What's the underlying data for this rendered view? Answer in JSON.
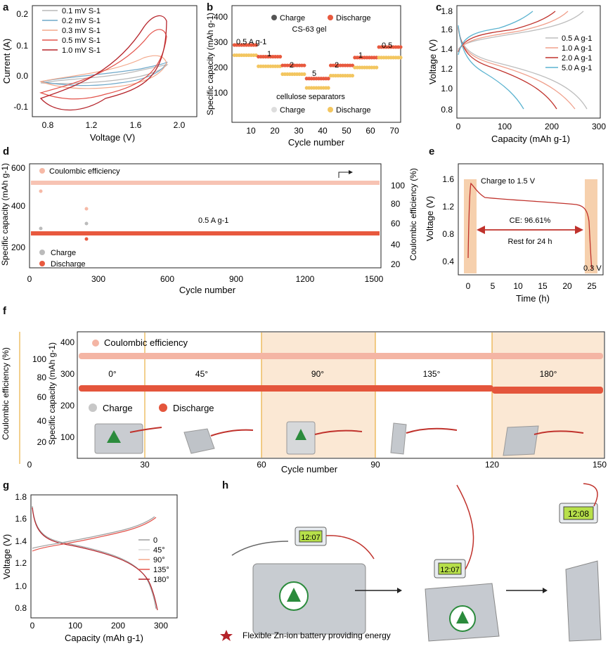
{
  "panels": {
    "a": {
      "label": "a",
      "xlabel": "Voltage (V)",
      "ylabel": "Current (A)",
      "xticks": [
        "0.8",
        "1.2",
        "1.6",
        "2.0"
      ],
      "yticks": [
        "0.2",
        "0.1",
        "0.0",
        "-0.1"
      ],
      "legend": [
        "0.1 mV S-1",
        "0.2 mV S-1",
        "0.3 mV S-1",
        "0.5 mV S-1",
        "1.0 mV S-1"
      ],
      "colors": [
        "#b9b9b9",
        "#6fa8c9",
        "#f3a98c",
        "#e3534b",
        "#b5232a"
      ]
    },
    "b": {
      "label": "b",
      "xlabel": "Cycle number",
      "ylabel": "Specific capacity (mAh g-1)",
      "xticks": [
        "10",
        "20",
        "30",
        "40",
        "50",
        "60",
        "70"
      ],
      "yticks": [
        "100",
        "200",
        "300",
        "400"
      ],
      "legend_top": [
        "Charge",
        "Discharge"
      ],
      "legend_bottom": [
        "Charge",
        "Discharge"
      ],
      "title_top": "CS-63 gel",
      "title_bottom": "cellulose separators",
      "rate_labels": [
        "0.5 A g-1",
        "1",
        "2",
        "5",
        "2",
        "1",
        "0.5"
      ]
    },
    "c": {
      "label": "c",
      "xlabel": "Capacity (mAh g-1)",
      "ylabel": "Voltage (V)",
      "xticks": [
        "0",
        "100",
        "200",
        "300"
      ],
      "yticks": [
        "1.8",
        "1.6",
        "1.4",
        "1.2",
        "1.0",
        "0.8"
      ],
      "legend": [
        "0.5 A g-1",
        "1.0 A g-1",
        "2.0 A g-1",
        "5.0 A g-1"
      ],
      "colors": [
        "#bdbdbd",
        "#f0a08c",
        "#c0322c",
        "#5bb3d0"
      ]
    },
    "d": {
      "label": "d",
      "xlabel": "Cycle number",
      "ylabel": "Specific capacity (mAh g-1)",
      "ylabel2": "Coulombic efficiency (%)",
      "xticks": [
        "0",
        "300",
        "600",
        "900",
        "1200",
        "1500"
      ],
      "yticks": [
        "600",
        "400",
        "200"
      ],
      "yticks2": [
        "100",
        "80",
        "60",
        "40",
        "20"
      ],
      "legend_ce": "Coulombic efficiency",
      "legend": [
        "Charge",
        "Discharge"
      ],
      "annotation": "0.5 A g-1"
    },
    "e": {
      "label": "e",
      "xlabel": "Time (h)",
      "ylabel": "Voltage (V)",
      "xticks": [
        "0",
        "5",
        "10",
        "15",
        "20",
        "25"
      ],
      "yticks": [
        "1.6",
        "1.2",
        "0.8",
        "0.4"
      ],
      "charge_text": "Charge to 1.5 V",
      "ce_text": "CE: 96.61%",
      "rest_text": "Rest for 24 h",
      "end_text": "0.3 V"
    },
    "f": {
      "label": "f",
      "xlabel": "Cycle number",
      "ylabel": "Specific capacity (mAh g-1)",
      "ylabel2": "Coulombic efficiency (%)",
      "xticks": [
        "0",
        "30",
        "60",
        "90",
        "120",
        "150"
      ],
      "yticks": [
        "400",
        "300",
        "200",
        "100"
      ],
      "yticks2": [
        "100",
        "80",
        "60",
        "40",
        "20"
      ],
      "legend_ce": "Coulombic efficiency",
      "legend": [
        "Charge",
        "Discharge"
      ],
      "angles": [
        "0°",
        "45°",
        "90°",
        "135°",
        "180°"
      ]
    },
    "g": {
      "label": "g",
      "xlabel": "Capacity (mAh g-1)",
      "ylabel": "Voltage (V)",
      "xticks": [
        "0",
        "100",
        "200",
        "300"
      ],
      "yticks": [
        "1.8",
        "1.6",
        "1.4",
        "1.2",
        "1.0",
        "0.8"
      ],
      "legend": [
        "0",
        "45°",
        "90°",
        "135°",
        "180°"
      ],
      "colors": [
        "#9e9e9e",
        "#d8d8d8",
        "#f3a98c",
        "#e3534b",
        "#b5232a"
      ]
    },
    "h": {
      "label": "h",
      "clock_times": [
        "12:07",
        "12:07",
        "12:08"
      ],
      "caption": "Flexible Zn-ion battery providing energy"
    }
  }
}
